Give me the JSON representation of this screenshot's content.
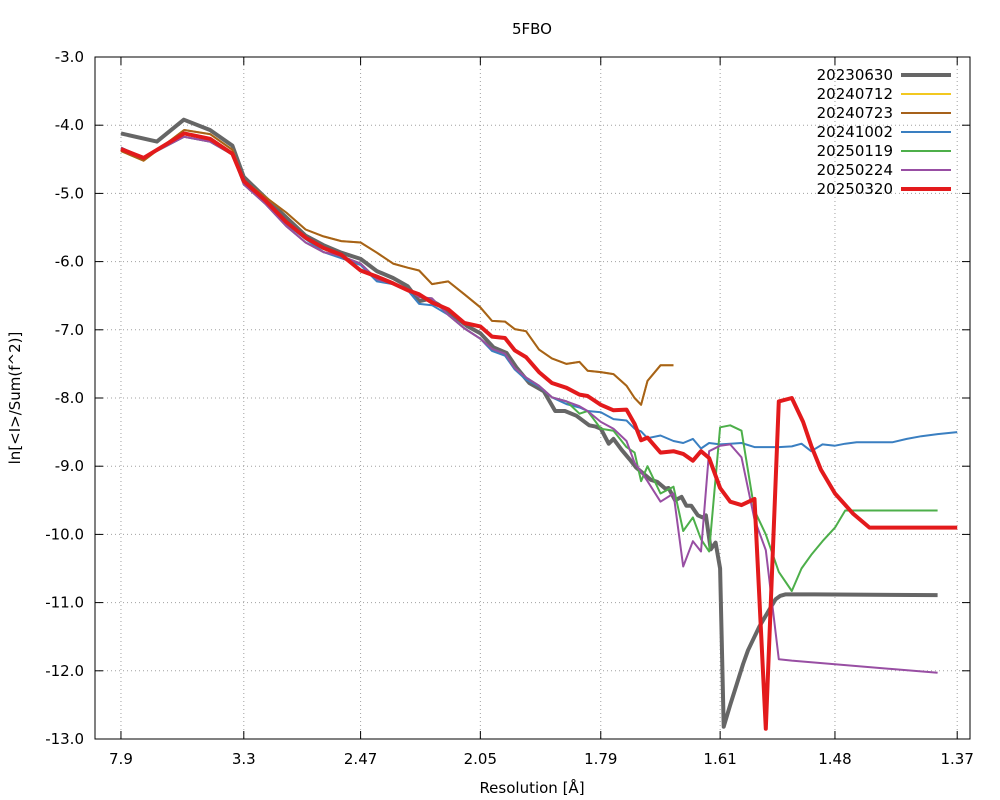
{
  "chart_data": {
    "type": "line",
    "title": "5FBO",
    "xlabel": "Resolution [Å]",
    "ylabel": "ln[<I>/Sum(f^2)]",
    "x_ticks": [
      {
        "value": 0.01602,
        "label": "7.9"
      },
      {
        "value": 0.09183,
        "label": "3.3"
      },
      {
        "value": 0.16391,
        "label": "2.47"
      },
      {
        "value": 0.23781,
        "label": "2.05"
      },
      {
        "value": 0.31213,
        "label": "1.79"
      },
      {
        "value": 0.3858,
        "label": "1.61"
      },
      {
        "value": 0.45666,
        "label": "1.48"
      },
      {
        "value": 0.5321,
        "label": "1.37"
      }
    ],
    "x_range": [
      0.0,
      0.54
    ],
    "y_ticks": [
      {
        "value": -3.0,
        "label": "-3.0"
      },
      {
        "value": -4.0,
        "label": "-4.0"
      },
      {
        "value": -5.0,
        "label": "-5.0"
      },
      {
        "value": -6.0,
        "label": "-6.0"
      },
      {
        "value": -7.0,
        "label": "-7.0"
      },
      {
        "value": -8.0,
        "label": "-8.0"
      },
      {
        "value": -9.0,
        "label": "-9.0"
      },
      {
        "value": -10.0,
        "label": "-10.0"
      },
      {
        "value": -11.0,
        "label": "-11.0"
      },
      {
        "value": -12.0,
        "label": "-12.0"
      },
      {
        "value": -13.0,
        "label": "-13.0"
      }
    ],
    "ylim": [
      -13.0,
      -3.0
    ],
    "grid": true,
    "legend_position": "top-right",
    "series": [
      {
        "name": "20230630",
        "color": "#666666",
        "width": 4,
        "x": [
          0.01602,
          0.0382,
          0.0548,
          0.071,
          0.0848,
          0.09183,
          0.105,
          0.118,
          0.13,
          0.141,
          0.152,
          0.16391,
          0.174,
          0.184,
          0.193,
          0.2,
          0.206,
          0.212,
          0.22,
          0.23,
          0.23781,
          0.246,
          0.254,
          0.26,
          0.268,
          0.277,
          0.284,
          0.29,
          0.297,
          0.305,
          0.309,
          0.31213,
          0.317,
          0.32,
          0.325,
          0.33,
          0.334,
          0.338,
          0.343,
          0.347,
          0.352,
          0.354,
          0.358,
          0.362,
          0.365,
          0.368,
          0.372,
          0.375,
          0.377,
          0.38,
          0.383,
          0.3858,
          0.388,
          0.392,
          0.396,
          0.4,
          0.403,
          0.407,
          0.41,
          0.415,
          0.42,
          0.423,
          0.426,
          0.43,
          0.434,
          0.437,
          0.441,
          0.444,
          0.52
        ],
        "y": [
          -4.12,
          -4.24,
          -3.92,
          -4.07,
          -4.3,
          -4.76,
          -5.06,
          -5.35,
          -5.62,
          -5.76,
          -5.87,
          -5.96,
          -6.14,
          -6.24,
          -6.36,
          -6.58,
          -6.55,
          -6.63,
          -6.77,
          -6.95,
          -7.05,
          -7.26,
          -7.34,
          -7.55,
          -7.78,
          -7.9,
          -8.19,
          -8.19,
          -8.26,
          -8.4,
          -8.42,
          -8.45,
          -8.67,
          -8.6,
          -8.76,
          -8.9,
          -9.02,
          -9.1,
          -9.2,
          -9.23,
          -9.33,
          -9.32,
          -9.5,
          -9.45,
          -9.58,
          -9.58,
          -9.72,
          -9.75,
          -9.72,
          -10.22,
          -10.12,
          -10.5,
          -12.82,
          -12.5,
          -12.2,
          -11.9,
          -11.7,
          -11.5,
          -11.35,
          -11.15,
          -10.95,
          -10.9,
          -10.88,
          -10.88,
          -10.88,
          -10.88,
          -10.88,
          -10.88,
          -10.89
        ]
      },
      {
        "name": "20240712",
        "color": "#f2c820",
        "width": 2,
        "x": [
          0.01602,
          0.03,
          0.055,
          0.071,
          0.0848,
          0.09183,
          0.105,
          0.118,
          0.13,
          0.141,
          0.152,
          0.16391,
          0.174,
          0.184,
          0.193,
          0.2,
          0.208,
          0.218,
          0.228,
          0.23781,
          0.245,
          0.253,
          0.259,
          0.266,
          0.274,
          0.282,
          0.291,
          0.299,
          0.304,
          0.31213,
          0.32,
          0.328,
          0.333,
          0.337,
          0.341,
          0.349,
          0.357
        ],
        "y": [
          -4.38,
          -4.52,
          -4.07,
          -4.13,
          -4.36,
          -4.82,
          -5.05,
          -5.28,
          -5.53,
          -5.63,
          -5.7,
          -5.72,
          -5.87,
          -6.03,
          -6.09,
          -6.13,
          -6.33,
          -6.29,
          -6.48,
          -6.67,
          -6.87,
          -6.88,
          -6.99,
          -7.02,
          -7.29,
          -7.42,
          -7.5,
          -7.47,
          -7.6,
          -7.62,
          -7.65,
          -7.82,
          -8.0,
          -8.1,
          -7.75,
          -7.52,
          -7.52
        ]
      },
      {
        "name": "20240723",
        "color": "#a6611a",
        "width": 2,
        "x": [
          0.01602,
          0.03,
          0.055,
          0.071,
          0.0848,
          0.09183,
          0.105,
          0.118,
          0.13,
          0.141,
          0.152,
          0.16391,
          0.174,
          0.184,
          0.193,
          0.2,
          0.208,
          0.218,
          0.228,
          0.23781,
          0.245,
          0.253,
          0.259,
          0.266,
          0.274,
          0.282,
          0.291,
          0.299,
          0.304,
          0.31213,
          0.32,
          0.328,
          0.333,
          0.337,
          0.341,
          0.349,
          0.357
        ],
        "y": [
          -4.38,
          -4.52,
          -4.07,
          -4.13,
          -4.36,
          -4.82,
          -5.05,
          -5.28,
          -5.53,
          -5.63,
          -5.7,
          -5.72,
          -5.87,
          -6.03,
          -6.09,
          -6.13,
          -6.33,
          -6.29,
          -6.48,
          -6.67,
          -6.87,
          -6.88,
          -6.99,
          -7.02,
          -7.29,
          -7.42,
          -7.5,
          -7.47,
          -7.6,
          -7.62,
          -7.65,
          -7.82,
          -8.0,
          -8.1,
          -7.75,
          -7.52,
          -7.52
        ]
      },
      {
        "name": "20241002",
        "color": "#3a7fc1",
        "width": 2,
        "x": [
          0.01602,
          0.03,
          0.055,
          0.071,
          0.0848,
          0.09183,
          0.105,
          0.118,
          0.13,
          0.141,
          0.152,
          0.16391,
          0.174,
          0.184,
          0.193,
          0.2,
          0.208,
          0.218,
          0.228,
          0.23781,
          0.245,
          0.253,
          0.259,
          0.266,
          0.274,
          0.282,
          0.291,
          0.299,
          0.304,
          0.31213,
          0.32,
          0.328,
          0.333,
          0.337,
          0.341,
          0.349,
          0.357,
          0.363,
          0.369,
          0.374,
          0.379,
          0.3858,
          0.392,
          0.399,
          0.407,
          0.414,
          0.422,
          0.43,
          0.436,
          0.442,
          0.449,
          0.45666,
          0.463,
          0.47,
          0.476,
          0.483,
          0.492,
          0.501,
          0.51,
          0.52,
          0.5321
        ],
        "y": [
          -4.33,
          -4.48,
          -4.17,
          -4.24,
          -4.43,
          -4.85,
          -5.12,
          -5.45,
          -5.67,
          -5.86,
          -5.95,
          -6.05,
          -6.29,
          -6.33,
          -6.42,
          -6.62,
          -6.64,
          -6.78,
          -6.98,
          -7.13,
          -7.31,
          -7.38,
          -7.58,
          -7.73,
          -7.83,
          -7.99,
          -8.09,
          -8.14,
          -8.19,
          -8.21,
          -8.31,
          -8.33,
          -8.45,
          -8.49,
          -8.59,
          -8.55,
          -8.63,
          -8.66,
          -8.6,
          -8.74,
          -8.66,
          -8.68,
          -8.67,
          -8.66,
          -8.72,
          -8.72,
          -8.72,
          -8.71,
          -8.67,
          -8.78,
          -8.68,
          -8.7,
          -8.67,
          -8.65,
          -8.65,
          -8.65,
          -8.65,
          -8.6,
          -8.56,
          -8.53,
          -8.5
        ]
      },
      {
        "name": "20250119",
        "color": "#4daf4a",
        "width": 2,
        "x": [
          0.01602,
          0.03,
          0.055,
          0.071,
          0.0848,
          0.09183,
          0.105,
          0.118,
          0.13,
          0.141,
          0.152,
          0.16391,
          0.174,
          0.184,
          0.193,
          0.2,
          0.208,
          0.218,
          0.228,
          0.23781,
          0.245,
          0.253,
          0.259,
          0.266,
          0.274,
          0.282,
          0.291,
          0.299,
          0.304,
          0.31213,
          0.32,
          0.328,
          0.333,
          0.337,
          0.341,
          0.349,
          0.357,
          0.363,
          0.369,
          0.374,
          0.379,
          0.3858,
          0.392,
          0.399,
          0.407,
          0.414,
          0.422,
          0.43,
          0.436,
          0.442,
          0.449,
          0.45666,
          0.463,
          0.47,
          0.476,
          0.483,
          0.492,
          0.501,
          0.51,
          0.52
        ],
        "y": [
          -4.33,
          -4.48,
          -4.17,
          -4.24,
          -4.43,
          -4.87,
          -5.15,
          -5.48,
          -5.72,
          -5.86,
          -5.92,
          -6.03,
          -6.26,
          -6.33,
          -6.4,
          -6.52,
          -6.54,
          -6.78,
          -6.98,
          -7.13,
          -7.28,
          -7.35,
          -7.56,
          -7.7,
          -7.82,
          -7.99,
          -8.05,
          -8.23,
          -8.19,
          -8.45,
          -8.48,
          -8.72,
          -8.8,
          -9.22,
          -9.0,
          -9.4,
          -9.3,
          -9.95,
          -9.75,
          -10.07,
          -10.25,
          -8.43,
          -8.4,
          -8.48,
          -9.65,
          -10.0,
          -10.55,
          -10.83,
          -10.5,
          -10.3,
          -10.1,
          -9.9,
          -9.65,
          -9.65,
          -9.65,
          -9.65,
          -9.65,
          -9.65,
          -9.65,
          -9.65
        ]
      },
      {
        "name": "20250224",
        "color": "#984ea3",
        "width": 2,
        "x": [
          0.01602,
          0.03,
          0.055,
          0.071,
          0.0848,
          0.09183,
          0.105,
          0.118,
          0.13,
          0.141,
          0.152,
          0.16391,
          0.174,
          0.184,
          0.193,
          0.2,
          0.208,
          0.218,
          0.228,
          0.23781,
          0.245,
          0.253,
          0.259,
          0.266,
          0.274,
          0.282,
          0.291,
          0.299,
          0.304,
          0.31213,
          0.32,
          0.328,
          0.333,
          0.337,
          0.341,
          0.349,
          0.357,
          0.363,
          0.369,
          0.374,
          0.379,
          0.3858,
          0.392,
          0.399,
          0.407,
          0.414,
          0.422,
          0.43,
          0.52
        ],
        "y": [
          -4.33,
          -4.48,
          -4.17,
          -4.24,
          -4.43,
          -4.87,
          -5.15,
          -5.48,
          -5.72,
          -5.86,
          -5.92,
          -6.03,
          -6.26,
          -6.33,
          -6.4,
          -6.52,
          -6.54,
          -6.78,
          -6.98,
          -7.13,
          -7.28,
          -7.35,
          -7.56,
          -7.7,
          -7.82,
          -7.99,
          -8.05,
          -8.12,
          -8.19,
          -8.35,
          -8.45,
          -8.63,
          -8.95,
          -9.08,
          -9.22,
          -9.52,
          -9.4,
          -10.47,
          -10.1,
          -10.25,
          -8.78,
          -8.7,
          -8.68,
          -8.87,
          -9.78,
          -10.23,
          -11.83,
          -11.85,
          -12.03
        ]
      },
      {
        "name": "20250320",
        "color": "#e31a1c",
        "width": 4,
        "x": [
          0.01602,
          0.03,
          0.055,
          0.071,
          0.0848,
          0.09183,
          0.105,
          0.118,
          0.13,
          0.141,
          0.152,
          0.16391,
          0.174,
          0.184,
          0.193,
          0.2,
          0.208,
          0.218,
          0.228,
          0.23781,
          0.245,
          0.253,
          0.259,
          0.266,
          0.274,
          0.282,
          0.291,
          0.299,
          0.304,
          0.31213,
          0.32,
          0.328,
          0.333,
          0.337,
          0.341,
          0.349,
          0.357,
          0.363,
          0.369,
          0.374,
          0.379,
          0.3858,
          0.392,
          0.399,
          0.407,
          0.414,
          0.422,
          0.43,
          0.437,
          0.442,
          0.448,
          0.45666,
          0.468,
          0.478,
          0.49,
          0.502,
          0.516,
          0.5321
        ],
        "y": [
          -4.35,
          -4.48,
          -4.12,
          -4.2,
          -4.42,
          -4.82,
          -5.1,
          -5.42,
          -5.65,
          -5.8,
          -5.9,
          -6.13,
          -6.22,
          -6.32,
          -6.42,
          -6.48,
          -6.6,
          -6.7,
          -6.9,
          -6.95,
          -7.1,
          -7.12,
          -7.3,
          -7.4,
          -7.62,
          -7.78,
          -7.85,
          -7.95,
          -7.97,
          -8.1,
          -8.18,
          -8.17,
          -8.38,
          -8.62,
          -8.58,
          -8.8,
          -8.78,
          -8.82,
          -8.92,
          -8.78,
          -8.88,
          -9.32,
          -9.52,
          -9.57,
          -9.48,
          -12.85,
          -8.05,
          -8.0,
          -8.35,
          -8.7,
          -9.05,
          -9.4,
          -9.7,
          -9.9,
          -9.9,
          -9.9,
          -9.9,
          -9.9
        ]
      }
    ]
  }
}
